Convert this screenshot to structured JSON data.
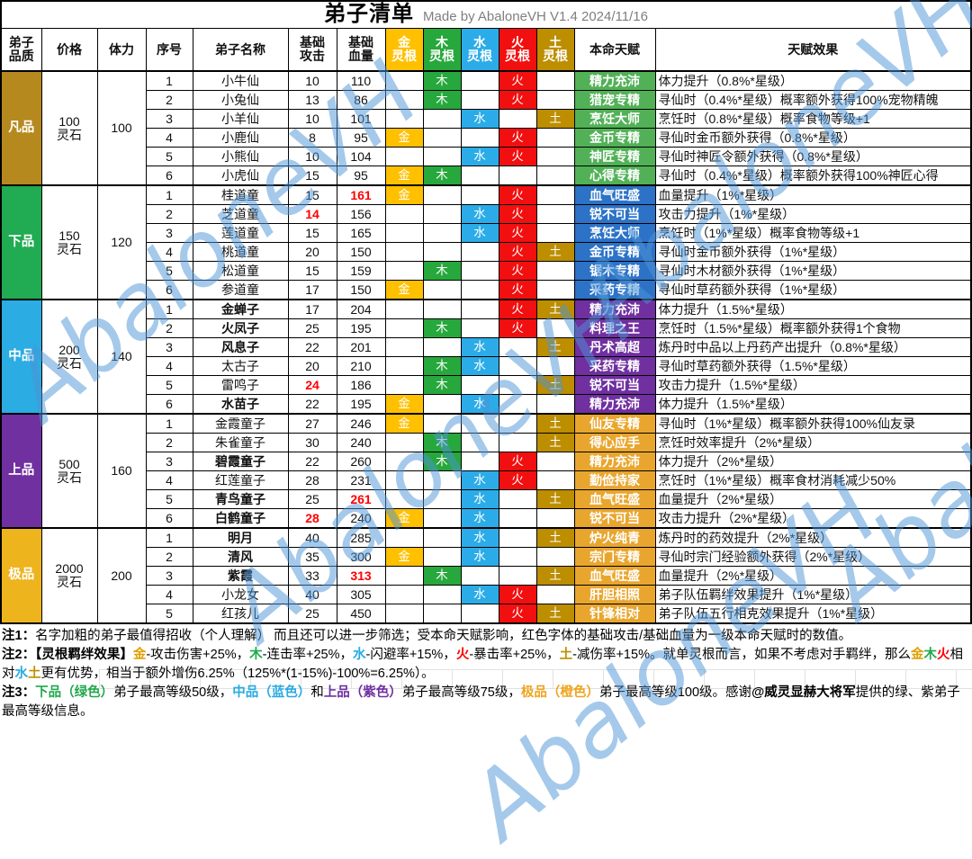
{
  "title": {
    "main": "弟子清单",
    "subtitle": "Made by AbaloneVH  V1.4  2024/11/16"
  },
  "watermark": {
    "text": "AbaloneVH",
    "color": "#4E94D6"
  },
  "labels": {
    "price_unit": "灵石"
  },
  "elements": {
    "jin": "金",
    "mu": "木",
    "shui": "水",
    "huo": "火",
    "tu": "土"
  },
  "element_colors": {
    "jin": "#FFC000",
    "mu": "#27A83C",
    "shui": "#2BACE8",
    "huo": "#F20F0F",
    "tu": "#BC8E00"
  },
  "header": [
    {
      "name": "col-quality",
      "label": "弟子\n品质"
    },
    {
      "name": "col-price",
      "label": "价格"
    },
    {
      "name": "col-stamina",
      "label": "体力"
    },
    {
      "name": "col-index",
      "label": "序号"
    },
    {
      "name": "col-name",
      "label": "弟子名称"
    },
    {
      "name": "col-base-attack",
      "label": "基础\n攻击"
    },
    {
      "name": "col-base-hp",
      "label": "基础\n血量"
    },
    {
      "name": "col-root-jin",
      "label": "金\n灵根",
      "bg": "#FFC000"
    },
    {
      "name": "col-root-mu",
      "label": "木\n灵根",
      "bg": "#27A83C"
    },
    {
      "name": "col-root-shui",
      "label": "水\n灵根",
      "bg": "#2BACE8"
    },
    {
      "name": "col-root-huo",
      "label": "火\n灵根",
      "bg": "#F20F0F"
    },
    {
      "name": "col-root-tu",
      "label": "土\n灵根",
      "bg": "#BC8E00"
    },
    {
      "name": "col-talent",
      "label": "本命天赋"
    },
    {
      "name": "col-talent-effect",
      "label": "天赋效果"
    }
  ],
  "groups": [
    {
      "quality": "凡品",
      "quality_color": "#B6891E",
      "price": "100",
      "stamina": "100",
      "talent_color": "#52B157",
      "rows": [
        {
          "no": "1",
          "name": "小牛仙",
          "bold": false,
          "atk": "10",
          "atk_red": false,
          "hp": "110",
          "hp_red": false,
          "roots": [
            "mu",
            "huo"
          ],
          "talent": "精力充沛",
          "effect": "体力提升（0.8%*星级）"
        },
        {
          "no": "2",
          "name": "小兔仙",
          "bold": false,
          "atk": "13",
          "atk_red": false,
          "hp": "86",
          "hp_red": false,
          "roots": [
            "mu",
            "huo"
          ],
          "talent": "猎宠专精",
          "effect": "寻仙时（0.4%*星级）概率额外获得100%宠物精魄"
        },
        {
          "no": "3",
          "name": "小羊仙",
          "bold": false,
          "atk": "10",
          "atk_red": false,
          "hp": "101",
          "hp_red": false,
          "roots": [
            "shui",
            "tu"
          ],
          "talent": "烹饪大师",
          "effect": "烹饪时（0.8%*星级）概率食物等级+1"
        },
        {
          "no": "4",
          "name": "小鹿仙",
          "bold": false,
          "atk": "8",
          "atk_red": false,
          "hp": "95",
          "hp_red": false,
          "roots": [
            "jin",
            "huo"
          ],
          "talent": "金币专精",
          "effect": "寻仙时金币额外获得（0.8%*星级）"
        },
        {
          "no": "5",
          "name": "小熊仙",
          "bold": false,
          "atk": "10",
          "atk_red": false,
          "hp": "104",
          "hp_red": false,
          "roots": [
            "shui",
            "huo"
          ],
          "talent": "神匠专精",
          "effect": "寻仙时神匠令额外获得（0.8%*星级）"
        },
        {
          "no": "6",
          "name": "小虎仙",
          "bold": false,
          "atk": "15",
          "atk_red": false,
          "hp": "95",
          "hp_red": false,
          "roots": [
            "jin",
            "mu"
          ],
          "talent": "心得专精",
          "effect": "寻仙时（0.4%*星级）概率额外获得100%神匠心得"
        }
      ]
    },
    {
      "quality": "下品",
      "quality_color": "#21AB52",
      "price": "150",
      "stamina": "120",
      "talent_color": "#2C72C7",
      "rows": [
        {
          "no": "1",
          "name": "桂道童",
          "bold": false,
          "atk": "15",
          "atk_red": false,
          "hp": "161",
          "hp_red": true,
          "roots": [
            "jin",
            "huo"
          ],
          "talent": "血气旺盛",
          "effect": "血量提升（1%*星级）"
        },
        {
          "no": "2",
          "name": "芝道童",
          "bold": false,
          "atk": "14",
          "atk_red": true,
          "hp": "156",
          "hp_red": false,
          "roots": [
            "shui",
            "huo"
          ],
          "talent": "锐不可当",
          "effect": "攻击力提升（1%*星级）"
        },
        {
          "no": "3",
          "name": "莲道童",
          "bold": false,
          "atk": "15",
          "atk_red": false,
          "hp": "165",
          "hp_red": false,
          "roots": [
            "shui",
            "huo"
          ],
          "talent": "烹饪大师",
          "effect": "烹饪时（1%*星级）概率食物等级+1"
        },
        {
          "no": "4",
          "name": "桃道童",
          "bold": false,
          "atk": "20",
          "atk_red": false,
          "hp": "150",
          "hp_red": false,
          "roots": [
            "huo",
            "tu"
          ],
          "talent": "金币专精",
          "effect": "寻仙时金币额外获得（1%*星级）"
        },
        {
          "no": "5",
          "name": "松道童",
          "bold": false,
          "atk": "15",
          "atk_red": false,
          "hp": "159",
          "hp_red": false,
          "roots": [
            "mu",
            "huo"
          ],
          "talent": "锯木专精",
          "effect": "寻仙时木材额外获得（1%*星级）"
        },
        {
          "no": "6",
          "name": "参道童",
          "bold": false,
          "atk": "17",
          "atk_red": false,
          "hp": "150",
          "hp_red": false,
          "roots": [
            "jin",
            "huo"
          ],
          "talent": "采药专精",
          "effect": "寻仙时草药额外获得（1%*星级）"
        }
      ]
    },
    {
      "quality": "中品",
      "quality_color": "#2BACE2",
      "price": "200",
      "stamina": "140",
      "talent_color": "#7030A0",
      "rows": [
        {
          "no": "1",
          "name": "金蝉子",
          "bold": true,
          "atk": "17",
          "atk_red": false,
          "hp": "204",
          "hp_red": false,
          "roots": [
            "huo",
            "tu"
          ],
          "talent": "精力充沛",
          "effect": "体力提升（1.5%*星级）"
        },
        {
          "no": "2",
          "name": "火凤子",
          "bold": true,
          "atk": "25",
          "atk_red": false,
          "hp": "195",
          "hp_red": false,
          "roots": [
            "mu",
            "huo"
          ],
          "talent": "料理之王",
          "effect": "烹饪时（1.5%*星级）概率额外获得1个食物"
        },
        {
          "no": "3",
          "name": "风息子",
          "bold": true,
          "atk": "22",
          "atk_red": false,
          "hp": "201",
          "hp_red": false,
          "roots": [
            "shui",
            "tu"
          ],
          "talent": "丹术高超",
          "effect": "炼丹时中品以上丹药产出提升（0.8%*星级）"
        },
        {
          "no": "4",
          "name": "太古子",
          "bold": false,
          "atk": "20",
          "atk_red": false,
          "hp": "210",
          "hp_red": false,
          "roots": [
            "mu",
            "shui"
          ],
          "talent": "采药专精",
          "effect": "寻仙时草药额外获得（1.5%*星级）"
        },
        {
          "no": "5",
          "name": "雷鸣子",
          "bold": false,
          "atk": "24",
          "atk_red": true,
          "hp": "186",
          "hp_red": false,
          "roots": [
            "mu",
            "tu"
          ],
          "talent": "锐不可当",
          "effect": "攻击力提升（1.5%*星级）"
        },
        {
          "no": "6",
          "name": "水苗子",
          "bold": true,
          "atk": "22",
          "atk_red": false,
          "hp": "195",
          "hp_red": false,
          "roots": [
            "jin",
            "shui"
          ],
          "talent": "精力充沛",
          "effect": "体力提升（1.5%*星级）"
        }
      ]
    },
    {
      "quality": "上品",
      "quality_color": "#7030A0",
      "price": "500",
      "stamina": "160",
      "talent_color": "#E9A62E",
      "rows": [
        {
          "no": "1",
          "name": "金霞童子",
          "bold": false,
          "atk": "27",
          "atk_red": false,
          "hp": "246",
          "hp_red": false,
          "roots": [
            "jin",
            "tu"
          ],
          "talent": "仙友专精",
          "effect": "寻仙时（1%*星级）概率额外获得100%仙友录"
        },
        {
          "no": "2",
          "name": "朱雀童子",
          "bold": false,
          "atk": "30",
          "atk_red": false,
          "hp": "240",
          "hp_red": false,
          "roots": [
            "mu",
            "tu"
          ],
          "talent": "得心应手",
          "effect": "烹饪时效率提升（2%*星级）"
        },
        {
          "no": "3",
          "name": "碧霞童子",
          "bold": true,
          "atk": "22",
          "atk_red": false,
          "hp": "260",
          "hp_red": false,
          "roots": [
            "mu",
            "huo"
          ],
          "talent": "精力充沛",
          "effect": "体力提升（2%*星级）"
        },
        {
          "no": "4",
          "name": "红莲童子",
          "bold": false,
          "atk": "28",
          "atk_red": false,
          "hp": "231",
          "hp_red": false,
          "roots": [
            "shui",
            "huo"
          ],
          "talent": "勤俭持家",
          "effect": "烹饪时（1%*星级）概率食材消耗减少50%"
        },
        {
          "no": "5",
          "name": "青鸟童子",
          "bold": true,
          "atk": "25",
          "atk_red": false,
          "hp": "261",
          "hp_red": true,
          "roots": [
            "shui",
            "tu"
          ],
          "talent": "血气旺盛",
          "effect": "血量提升（2%*星级）"
        },
        {
          "no": "6",
          "name": "白鹤童子",
          "bold": true,
          "atk": "28",
          "atk_red": true,
          "hp": "240",
          "hp_red": false,
          "roots": [
            "jin",
            "shui"
          ],
          "talent": "锐不可当",
          "effect": "攻击力提升（2%*星级）"
        }
      ]
    },
    {
      "quality": "极品",
      "quality_color": "#EDB41E",
      "price": "2000",
      "stamina": "200",
      "talent_color": "#E9A62E",
      "rows": [
        {
          "no": "1",
          "name": "明月",
          "bold": true,
          "atk": "40",
          "atk_red": false,
          "hp": "285",
          "hp_red": false,
          "roots": [
            "shui",
            "tu"
          ],
          "talent": "炉火纯青",
          "effect": "炼丹时的药效提升（2%*星级）"
        },
        {
          "no": "2",
          "name": "清风",
          "bold": true,
          "atk": "35",
          "atk_red": false,
          "hp": "300",
          "hp_red": false,
          "roots": [
            "jin",
            "shui"
          ],
          "talent": "宗门专精",
          "effect": "寻仙时宗门经验额外获得（2%*星级）"
        },
        {
          "no": "3",
          "name": "紫霞",
          "bold": true,
          "atk": "33",
          "atk_red": false,
          "hp": "313",
          "hp_red": true,
          "roots": [
            "mu",
            "tu"
          ],
          "talent": "血气旺盛",
          "effect": "血量提升（2%*星级）"
        },
        {
          "no": "4",
          "name": "小龙女",
          "bold": false,
          "atk": "40",
          "atk_red": false,
          "hp": "305",
          "hp_red": false,
          "roots": [
            "shui",
            "huo"
          ],
          "talent": "肝胆相照",
          "effect": "弟子队伍羁绊效果提升（1%*星级）"
        },
        {
          "no": "5",
          "name": "红孩儿",
          "bold": false,
          "atk": "25",
          "atk_red": false,
          "hp": "450",
          "hp_red": false,
          "roots": [
            "huo",
            "tu"
          ],
          "talent": "针锋相对",
          "effect": "弟子队伍五行相克效果提升（1%*星级）"
        }
      ]
    }
  ],
  "note_colors": {
    "gold": "#E09E00",
    "green": "#21A94D",
    "blue": "#29ABE2",
    "red": "#FF0000",
    "earth": "#BF8F00",
    "purple": "#7030A0",
    "orange": "#EFA41F"
  },
  "notes": [
    {
      "segments": [
        {
          "text": "注1：",
          "bold": true
        },
        {
          "text": "名字加粗的弟子最值得招收（个人理解）  而且还可以进一步筛选；受本命天赋影响，红色字体的基础攻击/基础血量为一级本命天赋时的数值。"
        }
      ]
    },
    {
      "segments": [
        {
          "text": "注2：",
          "bold": true
        },
        {
          "text": "【灵根羁绊效果】",
          "bold": true
        },
        {
          "text": "金",
          "color": "gold",
          "bold": true
        },
        {
          "text": "-攻击伤害+25%，"
        },
        {
          "text": "木",
          "color": "green",
          "bold": true
        },
        {
          "text": "-连击率+25%，"
        },
        {
          "text": "水",
          "color": "blue",
          "bold": true
        },
        {
          "text": "-闪避率+15%，"
        },
        {
          "text": "火",
          "color": "red",
          "bold": true
        },
        {
          "text": "-暴击率+25%，"
        },
        {
          "text": "土",
          "color": "earth",
          "bold": true
        },
        {
          "text": "-减伤率+15%。就单灵根而言，如果不考虑对手羁绊，那么"
        },
        {
          "text": "金",
          "color": "gold",
          "bold": true
        },
        {
          "text": "木",
          "color": "green",
          "bold": true
        },
        {
          "text": "火",
          "color": "red",
          "bold": true
        },
        {
          "text": "相对"
        },
        {
          "text": "水",
          "color": "blue",
          "bold": true
        },
        {
          "text": "土",
          "color": "earth",
          "bold": true
        },
        {
          "text": "更有优势，相当于额外增伤6.25%（125%*(1-15%)-100%=6.25%）。"
        }
      ]
    },
    {
      "segments": [
        {
          "text": "注3：",
          "bold": true
        },
        {
          "text": "下品（绿色）",
          "color": "green",
          "bold": true
        },
        {
          "text": "弟子最高等级50级，"
        },
        {
          "text": "中品（蓝色）",
          "color": "blue",
          "bold": true
        },
        {
          "text": "和"
        },
        {
          "text": "上品（紫色）",
          "color": "purple",
          "bold": true
        },
        {
          "text": "弟子最高等级75级，"
        },
        {
          "text": "极品（橙色）",
          "color": "orange",
          "bold": true
        },
        {
          "text": "弟子最高等级100级。感谢"
        },
        {
          "text": "@威灵显赫大将军",
          "bold": true
        },
        {
          "text": "提供的绿、紫弟子最高等级信息。"
        }
      ]
    }
  ]
}
